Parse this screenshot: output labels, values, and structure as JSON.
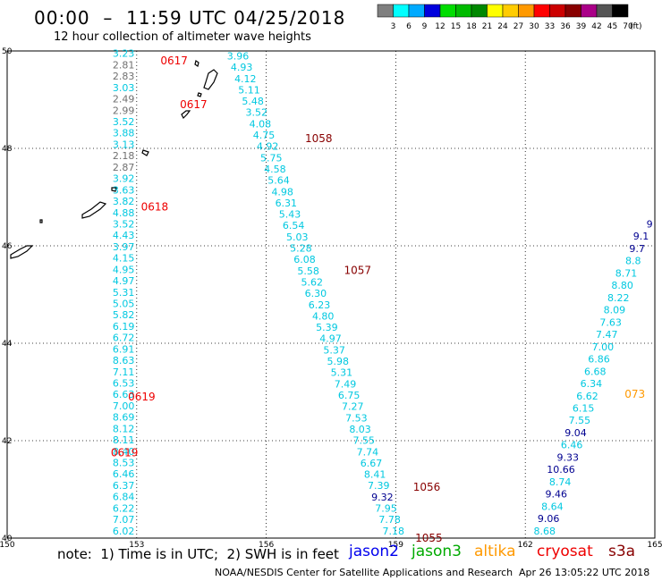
{
  "header": {
    "title": "00:00  –  11:59 UTC 04/25/2018",
    "subtitle": "12 hour collection of altimeter wave heights"
  },
  "legend": {
    "unit": "(ft)",
    "bins": [
      {
        "color": "#7f7f7f",
        "label": "3"
      },
      {
        "color": "#00ffff",
        "label": "6"
      },
      {
        "color": "#00aaff",
        "label": "9"
      },
      {
        "color": "#0000dd",
        "label": "12"
      },
      {
        "color": "#00dd00",
        "label": "15"
      },
      {
        "color": "#00bb00",
        "label": "18"
      },
      {
        "color": "#008800",
        "label": "21"
      },
      {
        "color": "#ffff00",
        "label": "24"
      },
      {
        "color": "#ffcc00",
        "label": "27"
      },
      {
        "color": "#ff9900",
        "label": "30"
      },
      {
        "color": "#ff0000",
        "label": "33"
      },
      {
        "color": "#cc0000",
        "label": "36"
      },
      {
        "color": "#880000",
        "label": "39"
      },
      {
        "color": "#aa0088",
        "label": "42"
      },
      {
        "color": "#555555",
        "label": "45"
      },
      {
        "color": "#000000",
        "label": "70"
      }
    ]
  },
  "axes": {
    "lon_ticks": [
      150,
      153,
      156,
      159,
      162,
      165
    ],
    "lat_ticks": [
      40,
      42,
      44,
      46,
      48,
      50
    ]
  },
  "colors": {
    "cyan": "#00c8e0",
    "gray": "#707070",
    "navy": "#000090",
    "red": "#ee0000",
    "darkred": "#880000",
    "orange": "#ff9900",
    "green": "#00aa00"
  },
  "tracks": [
    {
      "name": "track-153",
      "color": "cyan",
      "lon": 152.95,
      "lat_start": 49.95,
      "lat_end": 40.15,
      "values": [
        "3.23",
        "2.81",
        "2.83",
        "3.03",
        "2.49",
        "2.99",
        "3.52",
        "3.88",
        "3.13",
        "2.18",
        "2.87",
        "3.92",
        "3.63",
        "3.82",
        "4.88",
        "3.52",
        "4.43",
        "3.97",
        "4.15",
        "4.95",
        "4.97",
        "5.31",
        "5.05",
        "5.82",
        "6.19",
        "6.72",
        "6.91",
        "8.63",
        "7.11",
        "6.53",
        "6.63",
        "7.00",
        "8.69",
        "8.12",
        "8.11",
        "8.40",
        "8.53",
        "6.46",
        "6.37",
        "6.84",
        "6.22",
        "7.07",
        "6.02"
      ],
      "value_colors": {
        "1": "gray",
        "2": "gray",
        "4": "gray",
        "5": "gray",
        "9": "gray",
        "10": "gray"
      }
    },
    {
      "name": "track-156",
      "color": "cyan",
      "lon": 155.6,
      "lat_start": 49.9,
      "lat_end": 40.15,
      "lon_end": 159.2,
      "values": [
        "3.96",
        "4.93",
        "4.12",
        "5.11",
        "5.48",
        "3.52",
        "4.08",
        "4.75",
        "4.92",
        "5.75",
        "4.58",
        "5.64",
        "4.98",
        "6.31",
        "5.43",
        "6.54",
        "5.03",
        "5.28",
        "6.08",
        "5.58",
        "5.62",
        "6.30",
        "6.23",
        "4.80",
        "5.39",
        "4.97",
        "5.37",
        "5.98",
        "5.31",
        "7.49",
        "6.75",
        "7.27",
        "7.53",
        "8.03",
        "7.55",
        "7.74",
        "6.67",
        "8.41",
        "7.39",
        "9.32",
        "7.95",
        "7.78",
        "7.18"
      ],
      "value_colors": {
        "39": "navy"
      }
    },
    {
      "name": "track-164",
      "color": "cyan",
      "lon": 164.95,
      "lat_start": 46.45,
      "lat_end": 40.15,
      "lon_end": 162.7,
      "values": [
        "9",
        "9.1",
        "9.7",
        "8.8",
        "8.71",
        "8.80",
        "8.22",
        "8.09",
        "7.63",
        "7.47",
        "7.00",
        "6.86",
        "6.68",
        "6.34",
        "6.62",
        "6.15",
        "7.55",
        "9.04",
        "6.46",
        "9.33",
        "10.66",
        "8.74",
        "9.46",
        "8.64",
        "9.06",
        "8.68"
      ],
      "value_colors": {
        "0": "navy",
        "1": "navy",
        "2": "navy",
        "17": "navy",
        "19": "navy",
        "20": "navy",
        "22": "navy",
        "24": "navy"
      }
    }
  ],
  "time_labels": [
    {
      "text": "0617",
      "lon": 153.55,
      "lat": 49.8,
      "color": "red"
    },
    {
      "text": "0617",
      "lon": 154.0,
      "lat": 48.9,
      "color": "red"
    },
    {
      "text": "0618",
      "lon": 153.1,
      "lat": 46.8,
      "color": "red"
    },
    {
      "text": "0619",
      "lon": 152.8,
      "lat": 42.9,
      "color": "red"
    },
    {
      "text": "0619",
      "lon": 152.4,
      "lat": 41.75,
      "color": "red"
    },
    {
      "text": "1058",
      "lon": 156.9,
      "lat": 48.2,
      "color": "darkred"
    },
    {
      "text": "1057",
      "lon": 157.8,
      "lat": 45.5,
      "color": "darkred"
    },
    {
      "text": "1056",
      "lon": 159.4,
      "lat": 41.05,
      "color": "darkred"
    },
    {
      "text": "1055",
      "lon": 159.45,
      "lat": 40.0,
      "color": "darkred"
    },
    {
      "text": "073",
      "lon": 164.3,
      "lat": 42.95,
      "color": "orange"
    }
  ],
  "footer": {
    "note": "note:  1) Time is in UTC;  2) SWH is in feet",
    "satellites": [
      {
        "label": "jason2",
        "color": "#0000ee"
      },
      {
        "label": "jason3",
        "color": "#00aa00"
      },
      {
        "label": "altika",
        "color": "#ff9900"
      },
      {
        "label": "cryosat",
        "color": "#ee0000"
      },
      {
        "label": "s3a",
        "color": "#880000"
      }
    ],
    "credit": "NOAA/NESDIS Center for Satellite Applications and Research",
    "timestamp": "Apr 26 13:05:22 UTC 2018"
  }
}
